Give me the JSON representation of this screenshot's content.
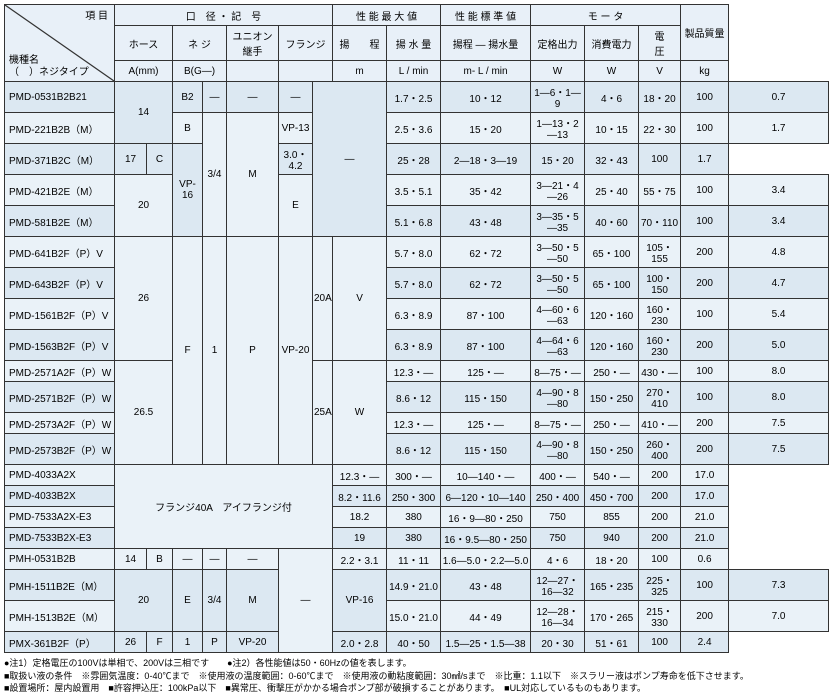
{
  "header": {
    "item": "項 目",
    "model_name": "機種名",
    "thread_type": "（　）ネジタイプ",
    "caliber": "口　径 ・ 記　号",
    "hose": "ホース",
    "screw": "ネ ジ",
    "union": "ユニオン継手",
    "flange": "フランジ",
    "a_mm": "A(mm)",
    "b_g": "B(G—)",
    "perf_max": "性 能 最 大 値",
    "head": "揚　　程",
    "flow": "揚 水 量",
    "m": "m",
    "lmin": "L / min",
    "perf_std": "性 能 標 準 値",
    "head_flow": "揚程 — 揚水量",
    "m_lmin": "m- L / min",
    "motor": "モ ー タ",
    "rated": "定格出力",
    "power": "消費電力",
    "voltage": "電　　圧",
    "w": "W",
    "v": "V",
    "weight": "製品質量",
    "kg": "kg"
  },
  "flange40a": "フランジ40A　アイフランジ付",
  "rows": [
    {
      "m": "PMD-0531B2B21",
      "h": "1.7・2.5",
      "f": "10・12",
      "s": "1—6・1—9",
      "r": "4・6",
      "p": "18・20",
      "v": "100",
      "w": "0.7"
    },
    {
      "m": "PMD-221B2B（M）",
      "h": "2.5・3.6",
      "f": "15・20",
      "s": "1—13・2—13",
      "r": "10・15",
      "p": "22・30",
      "v": "100",
      "w": "1.7"
    },
    {
      "m": "PMD-371B2C（M）",
      "h": "3.0・4.2",
      "f": "25・28",
      "s": "2—18・3—19",
      "r": "15・20",
      "p": "32・43",
      "v": "100",
      "w": "1.7"
    },
    {
      "m": "PMD-421B2E（M）",
      "h": "3.5・5.1",
      "f": "35・42",
      "s": "3—21・4—26",
      "r": "25・40",
      "p": "55・75",
      "v": "100",
      "w": "3.4"
    },
    {
      "m": "PMD-581B2E（M）",
      "h": "5.1・6.8",
      "f": "43・48",
      "s": "3—35・5—35",
      "r": "40・60",
      "p": "70・110",
      "v": "100",
      "w": "3.4"
    },
    {
      "m": "PMD-641B2F（P）V",
      "h": "5.7・8.0",
      "f": "62・72",
      "s": "3—50・5—50",
      "r": "65・100",
      "p": "105・155",
      "v": "200",
      "w": "4.8"
    },
    {
      "m": "PMD-643B2F（P）V",
      "h": "5.7・8.0",
      "f": "62・72",
      "s": "3—50・5—50",
      "r": "65・100",
      "p": "100・150",
      "v": "200",
      "w": "4.7"
    },
    {
      "m": "PMD-1561B2F（P）V",
      "h": "6.3・8.9",
      "f": "87・100",
      "s": "4—60・6—63",
      "r": "120・160",
      "p": "160・230",
      "v": "100",
      "w": "5.4"
    },
    {
      "m": "PMD-1563B2F（P）V",
      "h": "6.3・8.9",
      "f": "87・100",
      "s": "4—64・6—63",
      "r": "120・160",
      "p": "160・230",
      "v": "200",
      "w": "5.0"
    },
    {
      "m": "PMD-2571A2F（P）W",
      "h": "12.3・—",
      "f": "125・—",
      "s": "8—75・—",
      "r": "250・—",
      "p": "430・—",
      "v": "100",
      "w": "8.0"
    },
    {
      "m": "PMD-2571B2F（P）W",
      "h": "8.6・12",
      "f": "115・150",
      "s": "4—90・8—80",
      "r": "150・250",
      "p": "270・410",
      "v": "100",
      "w": "8.0"
    },
    {
      "m": "PMD-2573A2F（P）W",
      "h": "12.3・—",
      "f": "125・—",
      "s": "8—75・—",
      "r": "250・—",
      "p": "410・—",
      "v": "200",
      "w": "7.5"
    },
    {
      "m": "PMD-2573B2F（P）W",
      "h": "8.6・12",
      "f": "115・150",
      "s": "4—90・8—80",
      "r": "150・250",
      "p": "260・400",
      "v": "200",
      "w": "7.5"
    },
    {
      "m": "PMD-4033A2X",
      "h": "12.3・—",
      "f": "300・—",
      "s": "10—140・—",
      "r": "400・—",
      "p": "540・—",
      "v": "200",
      "w": "17.0"
    },
    {
      "m": "PMD-4033B2X",
      "h": "8.2・11.6",
      "f": "250・300",
      "s": "6—120・10—140",
      "r": "250・400",
      "p": "450・700",
      "v": "200",
      "w": "17.0"
    },
    {
      "m": "PMD-7533A2X-E3",
      "h": "18.2",
      "f": "380",
      "s": "16・9—80・250",
      "r": "750",
      "p": "855",
      "v": "200",
      "w": "21.0"
    },
    {
      "m": "PMD-7533B2X-E3",
      "h": "19",
      "f": "380",
      "s": "16・9.5—80・250",
      "r": "750",
      "p": "940",
      "v": "200",
      "w": "21.0"
    },
    {
      "m": "PMH-0531B2B",
      "h": "2.2・3.1",
      "f": "11・11",
      "s": "1.6—5.0・2.2—5.0",
      "r": "4・6",
      "p": "18・20",
      "v": "100",
      "w": "0.6"
    },
    {
      "m": "PMH-1511B2E（M）",
      "h": "14.9・21.0",
      "f": "43・48",
      "s": "12—27・16—32",
      "r": "165・235",
      "p": "225・325",
      "v": "100",
      "w": "7.3"
    },
    {
      "m": "PMH-1513B2E（M）",
      "h": "15.0・21.0",
      "f": "44・49",
      "s": "12—28・16—34",
      "r": "170・265",
      "p": "215・330",
      "v": "200",
      "w": "7.0"
    },
    {
      "m": "PMX-361B2F（P）",
      "h": "2.0・2.8",
      "f": "40・50",
      "s": "1.5—25・1.5—38",
      "r": "20・30",
      "p": "51・61",
      "v": "100",
      "w": "2.4"
    }
  ],
  "cal": {
    "h14": "14",
    "hB2": "B2",
    "hB": "B",
    "d1": "—",
    "d2": "—",
    "d3": "—",
    "vp13": "VP-13",
    "h17": "17",
    "hC": "C",
    "s34": "3/4",
    "sM": "M",
    "vp16": "VP-16",
    "h20": "20",
    "hE": "E",
    "ld": "—",
    "h26": "26",
    "hF": "F",
    "s1": "1",
    "sP": "P",
    "vp20": "VP-20",
    "f20a": "20A",
    "fV": "V",
    "h265": "26.5",
    "f25a": "25A",
    "fW": "W",
    "ph14": "14",
    "phB": "B",
    "pd": "—",
    "ph20": "20",
    "phE": "E",
    "ps34": "3/4",
    "psM": "M",
    "pvp16": "VP-16",
    "ph26": "26",
    "phF": "F",
    "ps1": "1",
    "psP": "P",
    "pvp20": "VP-20"
  },
  "footer": [
    "●注1）定格電圧の100Vは単相で、200Vは三相です　　●注2）各性能値は50・60Hzの値を表します。",
    "■取扱い液の条件　※雰囲気温度：0-40℃まで　※使用液の温度範囲：0-60℃まで　※使用液の動粘度範囲：30㎟/sまで　※比重：1.1以下　※スラリー液はポンプ寿命を低下させます。",
    "■設置場所：屋内設置用　■許容押込圧：100kPa以下　■異常圧、衝撃圧がかかる場合ポンプ部が破損することがあります。　■UL対応しているものもあります。"
  ]
}
